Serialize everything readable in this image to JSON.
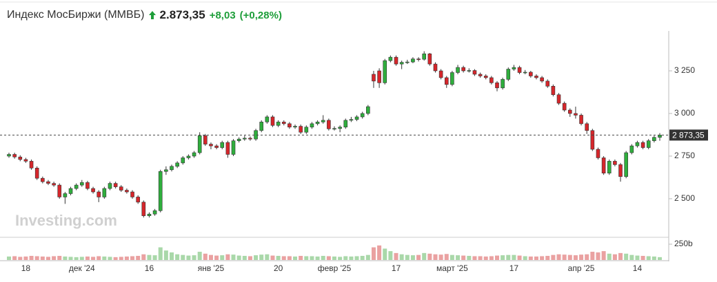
{
  "header": {
    "title": "Индекс МосБиржи (ММВБ)",
    "price": "2.873,35",
    "change": "+8,03",
    "change_pct": "(+0,28%)"
  },
  "chart_data": {
    "type": "candlestick",
    "watermark": "Investing.com",
    "up_color": "#2fae3d",
    "down_color": "#d6262b",
    "last_label": "2 873,35",
    "categories": [
      null,
      null,
      null,
      "18",
      null,
      null,
      null,
      null,
      null,
      null,
      null,
      null,
      null,
      "дек '24",
      null,
      null,
      null,
      null,
      null,
      null,
      null,
      null,
      null,
      null,
      null,
      "16",
      null,
      null,
      null,
      null,
      null,
      null,
      null,
      null,
      null,
      null,
      "янв '25",
      null,
      null,
      null,
      null,
      null,
      null,
      null,
      null,
      null,
      null,
      null,
      "20",
      null,
      null,
      null,
      null,
      null,
      null,
      null,
      null,
      null,
      "февр '25",
      null,
      null,
      null,
      null,
      null,
      null,
      null,
      null,
      null,
      null,
      "17",
      null,
      null,
      null,
      null,
      null,
      null,
      null,
      null,
      null,
      "март '25",
      null,
      null,
      null,
      null,
      null,
      null,
      null,
      null,
      null,
      null,
      "17",
      null,
      null,
      null,
      null,
      null,
      null,
      null,
      null,
      null,
      null,
      null,
      "апр '25",
      null,
      null,
      null,
      null,
      null,
      null,
      null,
      null,
      null,
      "14",
      null,
      null,
      null,
      null
    ],
    "open": [
      2750,
      2760,
      2745,
      2730,
      2720,
      2680,
      2620,
      2600,
      2590,
      2580,
      2510,
      2530,
      2560,
      2580,
      2595,
      2560,
      2540,
      2510,
      2560,
      2590,
      2570,
      2550,
      2540,
      2510,
      2480,
      2400,
      2410,
      2430,
      2660,
      2670,
      2690,
      2710,
      2740,
      2750,
      2770,
      2870,
      2820,
      2810,
      2800,
      2830,
      2760,
      2840,
      2850,
      2855,
      2850,
      2900,
      2950,
      2980,
      2930,
      2950,
      2940,
      2920,
      2925,
      2890,
      2920,
      2940,
      2950,
      2960,
      2910,
      2912,
      2920,
      2960,
      2965,
      2980,
      3000,
      3230,
      3250,
      3180,
      3310,
      3330,
      3290,
      3300,
      3302,
      3320,
      3318,
      3350,
      3290,
      3250,
      3210,
      3170,
      3240,
      3270,
      3250,
      3252,
      3230,
      3220,
      3210,
      3180,
      3150,
      3200,
      3260,
      3270,
      3240,
      3242,
      3220,
      3210,
      3190,
      3160,
      3110,
      3060,
      3020,
      3000,
      2990,
      2940,
      2900,
      2790,
      2740,
      2650,
      2720,
      2700,
      2630,
      2770,
      2810,
      2830,
      2800,
      2840,
      2860
    ],
    "high": [
      2770,
      2770,
      2755,
      2740,
      2730,
      2690,
      2630,
      2610,
      2600,
      2590,
      2540,
      2570,
      2590,
      2610,
      2605,
      2570,
      2550,
      2570,
      2600,
      2600,
      2580,
      2560,
      2550,
      2520,
      2490,
      2420,
      2440,
      2670,
      2690,
      2700,
      2720,
      2750,
      2760,
      2780,
      2890,
      2880,
      2830,
      2820,
      2840,
      2840,
      2850,
      2860,
      2870,
      2865,
      2910,
      2960,
      2990,
      2990,
      2960,
      2960,
      2950,
      2935,
      2935,
      2930,
      2950,
      2960,
      2990,
      2970,
      2925,
      2930,
      2970,
      2980,
      2990,
      3010,
      3050,
      3250,
      3265,
      3320,
      3340,
      3340,
      3310,
      3315,
      3330,
      3330,
      3365,
      3355,
      3300,
      3260,
      3220,
      3250,
      3285,
      3280,
      3265,
      3260,
      3240,
      3230,
      3220,
      3190,
      3210,
      3270,
      3285,
      3280,
      3255,
      3250,
      3230,
      3220,
      3200,
      3170,
      3120,
      3070,
      3030,
      3040,
      3000,
      2950,
      2910,
      2800,
      2750,
      2730,
      2730,
      2710,
      2780,
      2820,
      2840,
      2840,
      2850,
      2870,
      2885
    ],
    "low": [
      2740,
      2735,
      2720,
      2710,
      2670,
      2610,
      2590,
      2580,
      2570,
      2500,
      2470,
      2520,
      2550,
      2570,
      2550,
      2530,
      2480,
      2500,
      2550,
      2560,
      2540,
      2530,
      2500,
      2470,
      2390,
      2390,
      2400,
      2420,
      2640,
      2660,
      2680,
      2700,
      2730,
      2740,
      2760,
      2810,
      2790,
      2790,
      2790,
      2740,
      2750,
      2830,
      2840,
      2840,
      2840,
      2890,
      2940,
      2920,
      2920,
      2930,
      2910,
      2910,
      2880,
      2880,
      2910,
      2930,
      2940,
      2900,
      2900,
      2890,
      2910,
      2950,
      2955,
      2970,
      2990,
      3150,
      3150,
      3170,
      3300,
      3280,
      3260,
      3290,
      3295,
      3305,
      3310,
      3280,
      3240,
      3200,
      3150,
      3160,
      3230,
      3240,
      3240,
      3220,
      3210,
      3200,
      3170,
      3130,
      3140,
      3190,
      3250,
      3230,
      3230,
      3210,
      3200,
      3180,
      3150,
      3100,
      3050,
      3010,
      2980,
      2970,
      2930,
      2880,
      2780,
      2730,
      2640,
      2640,
      2690,
      2600,
      2620,
      2760,
      2800,
      2790,
      2790,
      2830,
      2840
    ],
    "close": [
      2760,
      2745,
      2730,
      2720,
      2680,
      2620,
      2600,
      2590,
      2580,
      2510,
      2530,
      2560,
      2580,
      2595,
      2560,
      2540,
      2510,
      2560,
      2590,
      2570,
      2550,
      2540,
      2510,
      2480,
      2400,
      2410,
      2430,
      2660,
      2670,
      2690,
      2710,
      2740,
      2750,
      2770,
      2870,
      2820,
      2810,
      2800,
      2830,
      2760,
      2840,
      2850,
      2855,
      2850,
      2900,
      2950,
      2980,
      2930,
      2950,
      2940,
      2920,
      2925,
      2890,
      2920,
      2940,
      2950,
      2960,
      2910,
      2912,
      2920,
      2960,
      2965,
      2980,
      3000,
      3040,
      3190,
      3180,
      3310,
      3330,
      3290,
      3300,
      3302,
      3320,
      3318,
      3350,
      3290,
      3250,
      3210,
      3170,
      3240,
      3270,
      3250,
      3252,
      3230,
      3220,
      3210,
      3180,
      3150,
      3200,
      3260,
      3270,
      3240,
      3242,
      3220,
      3210,
      3190,
      3160,
      3110,
      3060,
      3020,
      3000,
      2990,
      2940,
      2900,
      2790,
      2740,
      2650,
      2720,
      2700,
      2630,
      2770,
      2810,
      2830,
      2800,
      2840,
      2860,
      2873.35
    ],
    "ylim": [
      2294,
      3484
    ],
    "yticks": [
      {
        "value": 2500,
        "label": "2 500"
      },
      {
        "value": 2750,
        "label": "2 750"
      },
      {
        "value": 3000,
        "label": "3 000"
      },
      {
        "value": 3250,
        "label": "3 250"
      }
    ],
    "volume": {
      "up_color": "#a9d8a9",
      "down_color": "#eaa1a1",
      "values": [
        55,
        60,
        50,
        55,
        65,
        60,
        55,
        50,
        60,
        65,
        55,
        50,
        45,
        50,
        55,
        50,
        60,
        55,
        50,
        45,
        50,
        55,
        60,
        65,
        90,
        80,
        75,
        200,
        150,
        120,
        90,
        80,
        70,
        75,
        130,
        100,
        80,
        70,
        75,
        90,
        85,
        70,
        65,
        60,
        75,
        85,
        90,
        70,
        65,
        60,
        60,
        55,
        65,
        60,
        60,
        55,
        65,
        60,
        55,
        50,
        60,
        55,
        60,
        65,
        80,
        200,
        230,
        180,
        140,
        110,
        90,
        80,
        75,
        80,
        110,
        100,
        90,
        85,
        95,
        80,
        75,
        70,
        65,
        60,
        60,
        55,
        60,
        70,
        75,
        80,
        80,
        70,
        60,
        55,
        55,
        60,
        65,
        80,
        90,
        85,
        80,
        75,
        85,
        90,
        130,
        120,
        140,
        100,
        90,
        110,
        100,
        80,
        70,
        65,
        60,
        55,
        45
      ],
      "ylim": [
        0,
        250
      ],
      "yticks": [
        {
          "value": 250,
          "label": "250b"
        }
      ]
    }
  }
}
